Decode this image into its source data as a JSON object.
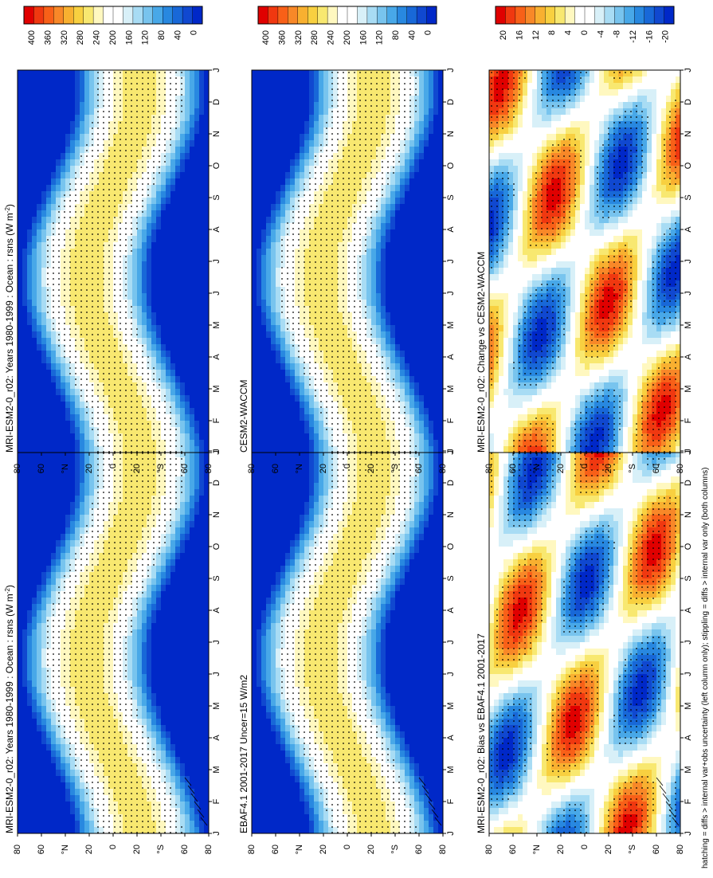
{
  "figure": {
    "footnote": "hatching = diffs > internal var+obs uncertainty (left column only); stippling = diffs > internal var only (both columns)"
  },
  "colors": {
    "abs_scale": [
      "#ffffff",
      "#ffffff"
    ],
    "diff_scale": [
      "#ffffff",
      "#ffffff"
    ]
  },
  "chart_data": [
    {
      "id": "p1",
      "type": "heatmap",
      "domain": "lat-month",
      "title": "MRI-ESM2-0_r02: Years 1980-1999 : Ocean : rsns (W m",
      "title_sup": "-2",
      "title_tail": ")",
      "x_ticks": [
        "J",
        "F",
        "M",
        "A",
        "M",
        "J",
        "J",
        "A",
        "S",
        "O",
        "N",
        "D",
        "J"
      ],
      "y_ticks": [
        "80",
        "60",
        "°N",
        "20",
        "0",
        "20",
        "°S",
        "60",
        "80"
      ],
      "colorbar": {
        "labels": [
          "400",
          "360",
          "320",
          "280",
          "240",
          "200",
          "160",
          "120",
          "80",
          "40",
          "0"
        ]
      },
      "hatching": true,
      "stippling": true
    },
    {
      "id": "p2",
      "type": "heatmap",
      "domain": "lat-month",
      "title": "MRI-ESM2-0_r02: Years 1980-1999 : Ocean : rsns (W m",
      "title_sup": "-2",
      "title_tail": ")",
      "x_ticks": [
        "J",
        "F",
        "M",
        "A",
        "M",
        "J",
        "J",
        "A",
        "S",
        "O",
        "N",
        "D",
        "J"
      ],
      "y_ticks": [
        "80",
        "60",
        "°N",
        "20",
        "0",
        "20",
        "°S",
        "60",
        "80"
      ],
      "colorbar": {
        "labels": [
          "400",
          "360",
          "320",
          "280",
          "240",
          "200",
          "160",
          "120",
          "80",
          "40",
          "0"
        ]
      },
      "stippling": true
    },
    {
      "id": "p3",
      "type": "heatmap",
      "domain": "lat-month",
      "title": "EBAF4.1 2001-2017 Uncer=15 W/m2",
      "x_ticks": [
        "J",
        "F",
        "M",
        "A",
        "M",
        "J",
        "J",
        "A",
        "S",
        "O",
        "N",
        "D",
        "J"
      ],
      "y_ticks": [
        "80",
        "60",
        "°N",
        "20",
        "0",
        "20",
        "°S",
        "60",
        "80"
      ],
      "colorbar": {
        "labels": [
          "400",
          "360",
          "320",
          "280",
          "240",
          "200",
          "160",
          "120",
          "80",
          "40",
          "0"
        ]
      },
      "hatching": true,
      "stippling": true
    },
    {
      "id": "p4",
      "type": "heatmap",
      "domain": "lat-month",
      "title": "CESM2-WACCM",
      "x_ticks": [
        "J",
        "F",
        "M",
        "A",
        "M",
        "J",
        "J",
        "A",
        "S",
        "O",
        "N",
        "D",
        "J"
      ],
      "y_ticks": [
        "80",
        "60",
        "°N",
        "20",
        "0",
        "20",
        "°S",
        "60",
        "80"
      ],
      "colorbar": {
        "labels": [
          "400",
          "360",
          "320",
          "280",
          "240",
          "200",
          "160",
          "120",
          "80",
          "40",
          "0"
        ]
      },
      "stippling": true
    },
    {
      "id": "p5",
      "type": "heatmap",
      "domain": "lat-month",
      "title": "MRI-ESM2-0_r02: Bias vs EBAF4.1 2001-2017",
      "x_ticks": [
        "J",
        "F",
        "M",
        "A",
        "M",
        "J",
        "J",
        "A",
        "S",
        "O",
        "N",
        "D",
        "J"
      ],
      "y_ticks": [
        "80",
        "60",
        "°N",
        "20",
        "0",
        "20",
        "°S",
        "60",
        "80"
      ],
      "colorbar": {
        "labels": [
          "20",
          "16",
          "12",
          "8",
          "4",
          "0",
          "-4",
          "-8",
          "-12",
          "-16",
          "-20"
        ]
      },
      "hatching": true,
      "stippling": true
    },
    {
      "id": "p6",
      "type": "heatmap",
      "domain": "lat-month",
      "title": "MRI-ESM2-0_r02: Change vs CESM2-WACCM",
      "x_ticks": [
        "J",
        "F",
        "M",
        "A",
        "M",
        "J",
        "J",
        "A",
        "S",
        "O",
        "N",
        "D",
        "J"
      ],
      "y_ticks": [
        "80",
        "60",
        "°N",
        "20",
        "0",
        "20",
        "°S",
        "60",
        "80"
      ],
      "colorbar": {
        "labels": [
          "20",
          "16",
          "12",
          "8",
          "4",
          "0",
          "-4",
          "-8",
          "-12",
          "-16",
          "-20"
        ]
      },
      "stippling": true
    }
  ]
}
